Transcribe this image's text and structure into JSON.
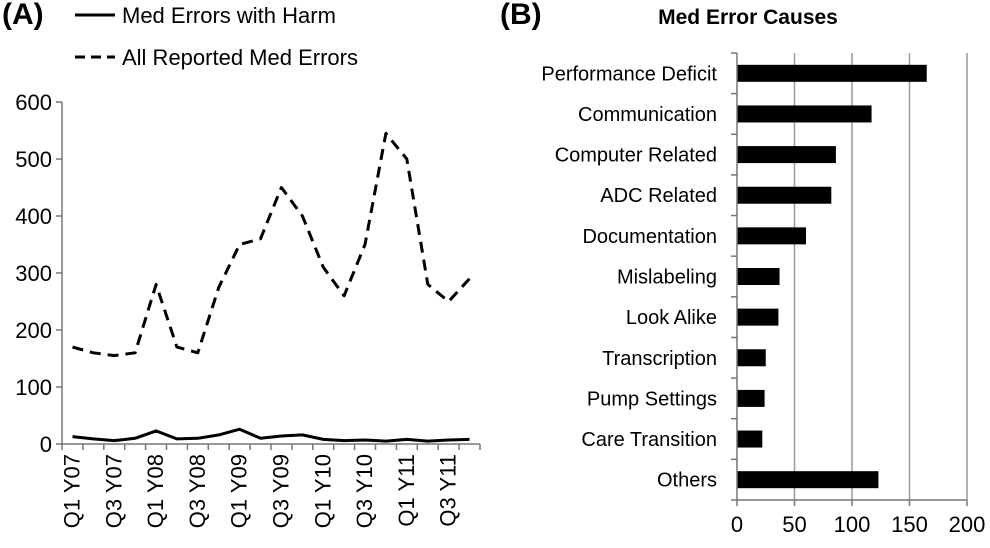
{
  "chart_data": [
    {
      "type": "line",
      "panel_label": "(A)",
      "title": "",
      "xlabel": "",
      "ylabel": "",
      "x": [
        "Q1 Y07",
        "Q2 Y07",
        "Q3 Y07",
        "Q4 Y07",
        "Q1 Y08",
        "Q2 Y08",
        "Q3 Y08",
        "Q4 Y08",
        "Q1 Y09",
        "Q2 Y09",
        "Q3 Y09",
        "Q4 Y09",
        "Q1 Y10",
        "Q2 Y10",
        "Q3 Y10",
        "Q4 Y10",
        "Q1 Y11",
        "Q2 Y11",
        "Q3 Y11",
        "Q4 Y11"
      ],
      "x_tick_labels": [
        "Q1 Y07",
        "Q3 Y07",
        "Q1 Y08",
        "Q3 Y08",
        "Q1 Y09",
        "Q3 Y09",
        "Q1 Y10",
        "Q3 Y10",
        "Q1 Y11",
        "Q3 Y11"
      ],
      "series": [
        {
          "name": "Med Errors with Harm",
          "style": "solid",
          "values": [
            13,
            9,
            6,
            10,
            23,
            9,
            10,
            16,
            26,
            10,
            14,
            16,
            8,
            6,
            7,
            5,
            8,
            5,
            7,
            8
          ]
        },
        {
          "name": "All Reported Med Errors",
          "style": "dashed",
          "values": [
            170,
            160,
            155,
            160,
            280,
            170,
            160,
            275,
            350,
            360,
            450,
            400,
            310,
            260,
            350,
            545,
            500,
            280,
            250,
            290
          ]
        }
      ],
      "ylim": [
        0,
        600
      ],
      "yticks": [
        0,
        100,
        200,
        300,
        400,
        500,
        600
      ],
      "grid": false,
      "legend": "top"
    },
    {
      "type": "bar",
      "orientation": "horizontal",
      "panel_label": "(B)",
      "title": "Med Error Causes",
      "xlabel": "",
      "ylabel": "",
      "categories": [
        "Performance Deficit",
        "Communication",
        "Computer Related",
        "ADC Related",
        "Documentation",
        "Mislabeling",
        "Look Alike",
        "Transcription",
        "Pump Settings",
        "Care Transition",
        "Others"
      ],
      "values": [
        165,
        117,
        86,
        82,
        60,
        37,
        36,
        25,
        24,
        22,
        123
      ],
      "xlim": [
        0,
        200
      ],
      "xticks": [
        0,
        50,
        100,
        150,
        200
      ],
      "grid": true,
      "bar_color": "#000000"
    }
  ]
}
